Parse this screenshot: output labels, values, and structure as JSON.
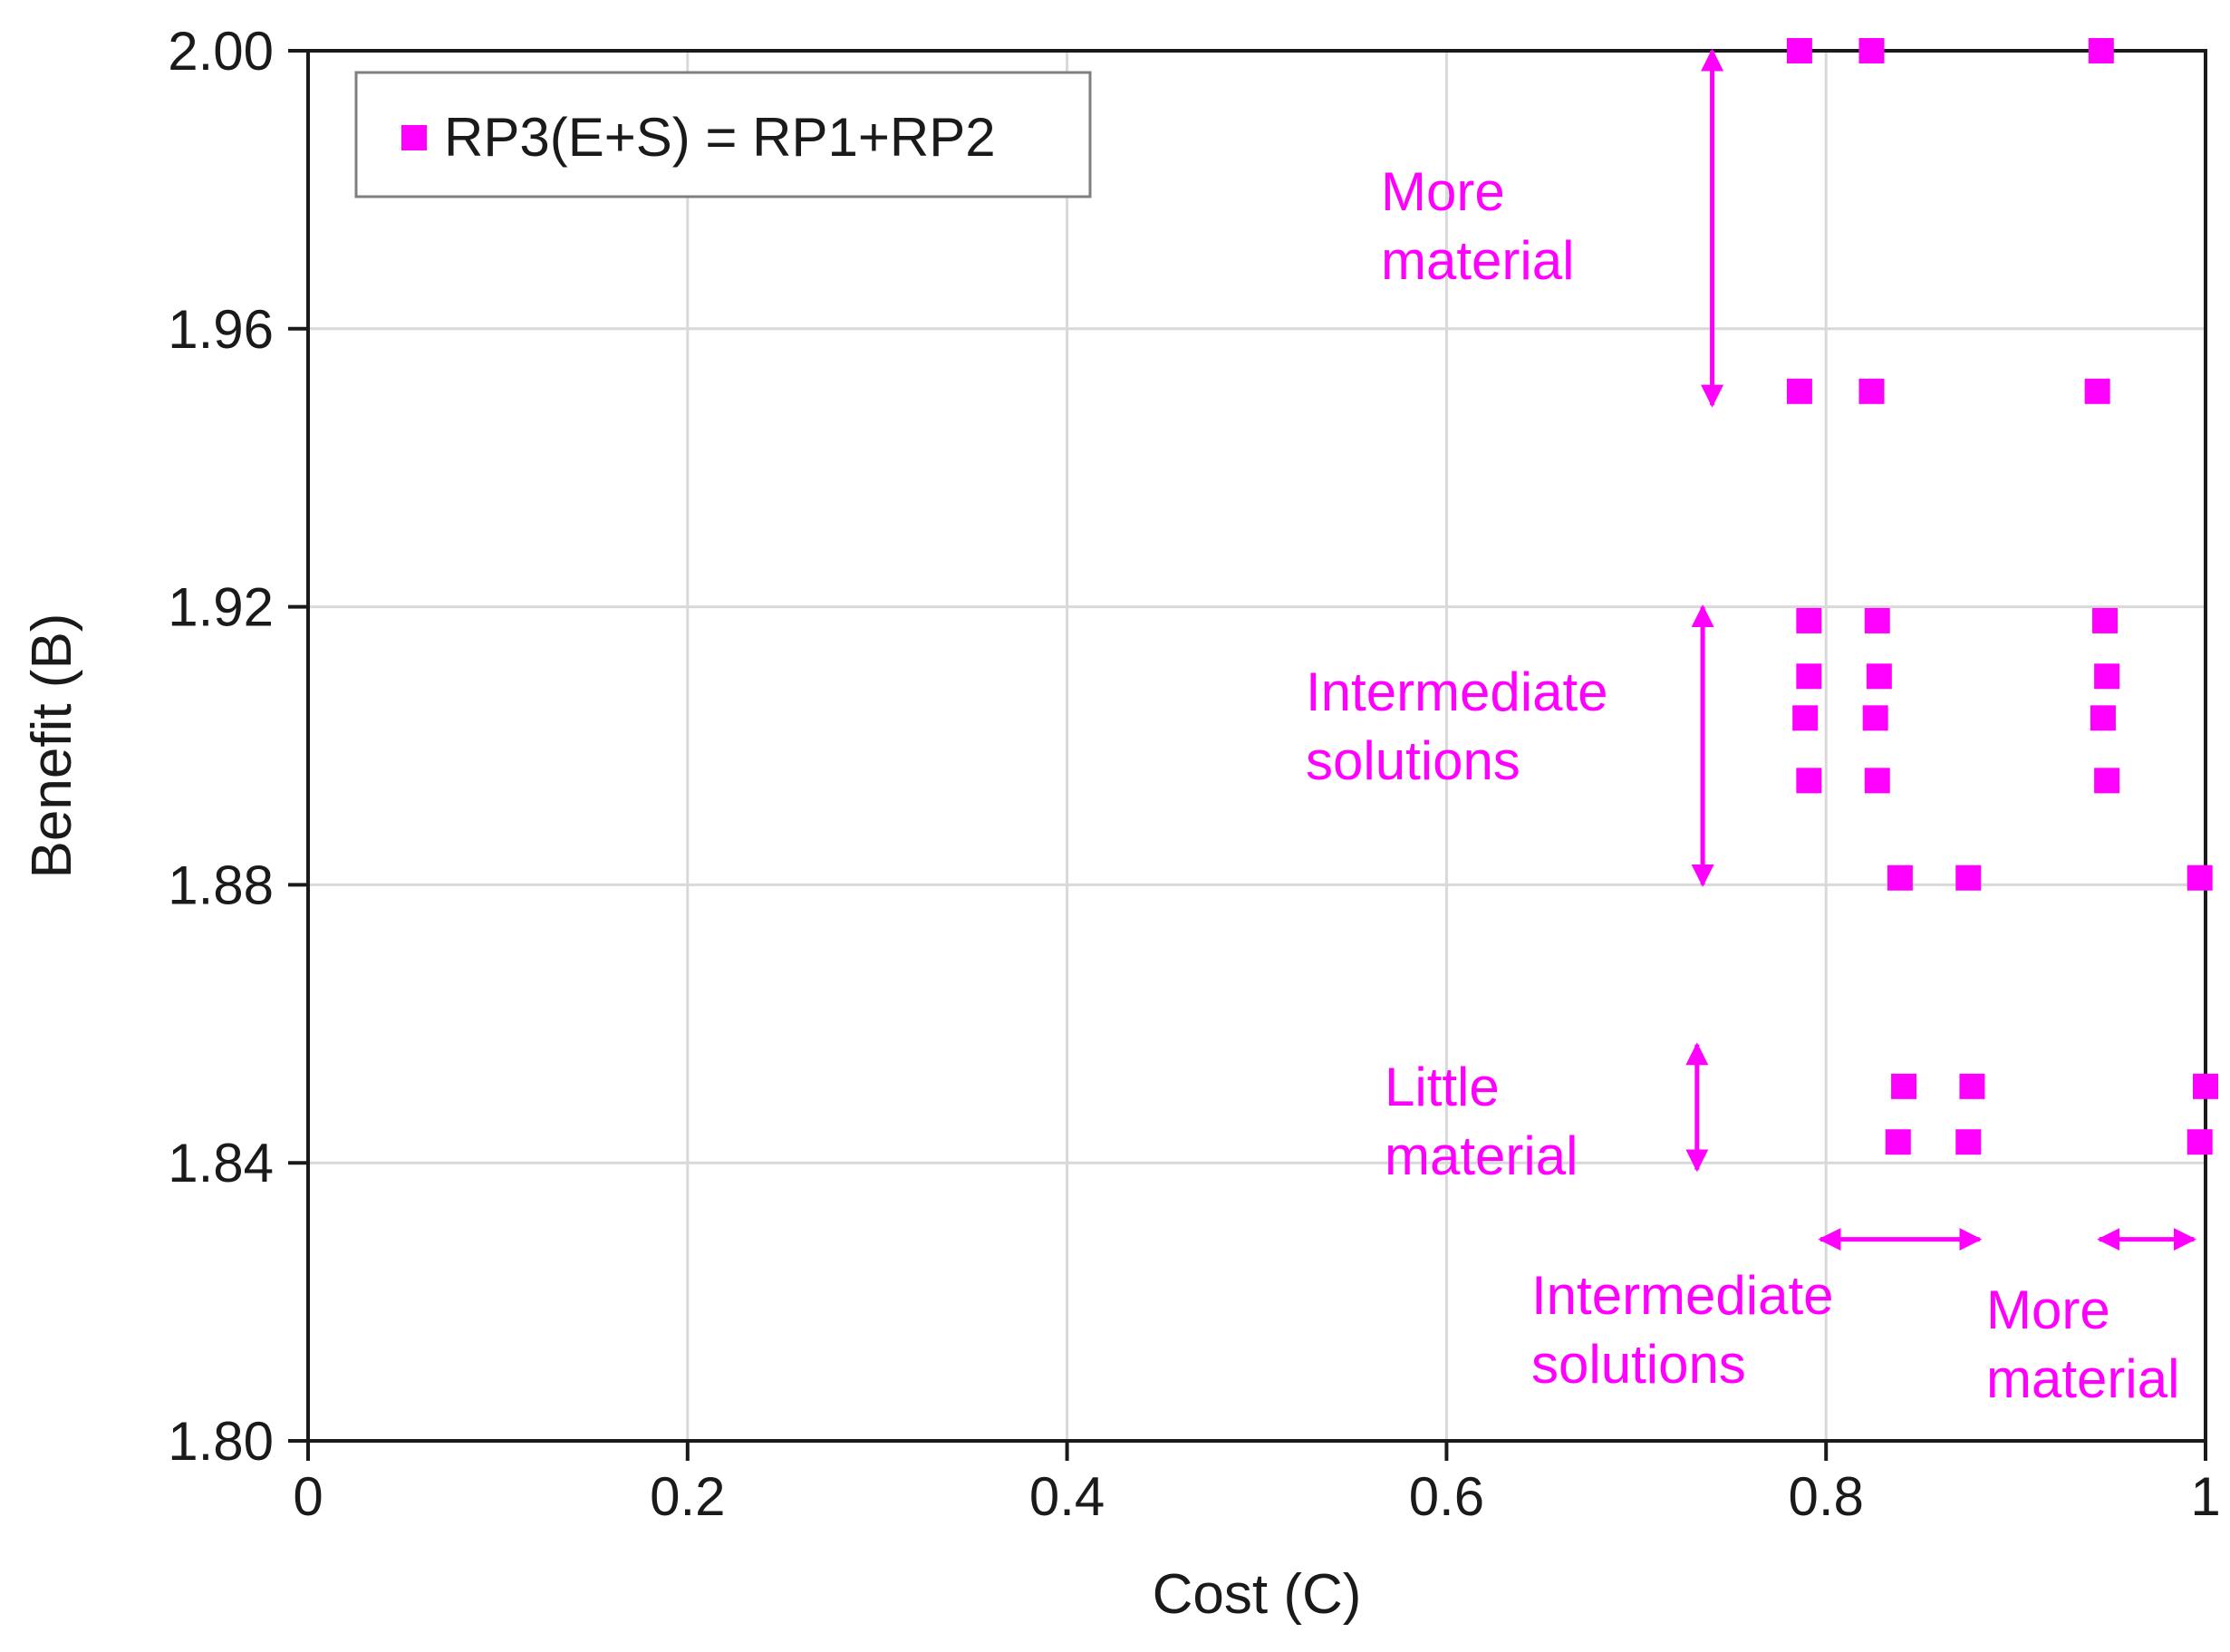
{
  "chart_data": {
    "type": "scatter",
    "title": "",
    "xlabel": "Cost (C)",
    "ylabel": "Benefit (B)",
    "xlim": [
      0,
      1
    ],
    "ylim": [
      1.8,
      2.0
    ],
    "xticks": [
      "0",
      "0.2",
      "0.4",
      "0.6",
      "0.8",
      "1"
    ],
    "yticks": [
      "1.80",
      "1.84",
      "1.88",
      "1.92",
      "1.96",
      "2.00"
    ],
    "grid": true,
    "legend_position": "top-left",
    "marker_color": "#ff00ff",
    "series": [
      {
        "name": "RP3(E+S) = RP1+RP2",
        "marker": "square",
        "points": [
          {
            "x": 0.786,
            "y": 2.0
          },
          {
            "x": 0.824,
            "y": 2.0
          },
          {
            "x": 0.945,
            "y": 2.0
          },
          {
            "x": 0.786,
            "y": 1.951
          },
          {
            "x": 0.824,
            "y": 1.951
          },
          {
            "x": 0.943,
            "y": 1.951
          },
          {
            "x": 0.791,
            "y": 1.918
          },
          {
            "x": 0.827,
            "y": 1.918
          },
          {
            "x": 0.947,
            "y": 1.918
          },
          {
            "x": 0.791,
            "y": 1.91
          },
          {
            "x": 0.828,
            "y": 1.91
          },
          {
            "x": 0.948,
            "y": 1.91
          },
          {
            "x": 0.789,
            "y": 1.904
          },
          {
            "x": 0.826,
            "y": 1.904
          },
          {
            "x": 0.946,
            "y": 1.904
          },
          {
            "x": 0.791,
            "y": 1.895
          },
          {
            "x": 0.827,
            "y": 1.895
          },
          {
            "x": 0.948,
            "y": 1.895
          },
          {
            "x": 0.839,
            "y": 1.881
          },
          {
            "x": 0.875,
            "y": 1.881
          },
          {
            "x": 0.997,
            "y": 1.881
          },
          {
            "x": 0.841,
            "y": 1.851
          },
          {
            "x": 0.877,
            "y": 1.851
          },
          {
            "x": 1.0,
            "y": 1.851
          },
          {
            "x": 0.838,
            "y": 1.843
          },
          {
            "x": 0.875,
            "y": 1.843
          },
          {
            "x": 0.997,
            "y": 1.843
          }
        ]
      }
    ],
    "annotations": [
      {
        "lines": [
          "More",
          "material"
        ],
        "arrow": "vertical",
        "from": [
          0.74,
          2.0
        ],
        "to": [
          0.74,
          1.949
        ]
      },
      {
        "lines": [
          "Intermediate",
          "solutions"
        ],
        "arrow": "vertical",
        "from": [
          0.735,
          1.92
        ],
        "to": [
          0.735,
          1.88
        ]
      },
      {
        "lines": [
          "Little",
          "material"
        ],
        "arrow": "vertical",
        "from": [
          0.732,
          1.857
        ],
        "to": [
          0.732,
          1.839
        ]
      },
      {
        "lines": [
          "Intermediate",
          "solutions"
        ],
        "arrow": "horizontal",
        "from": [
          0.797,
          1.829
        ],
        "to": [
          0.881,
          1.829
        ]
      },
      {
        "lines": [
          "More",
          "material"
        ],
        "arrow": "horizontal",
        "from": [
          0.944,
          1.829
        ],
        "to": [
          0.994,
          1.829
        ]
      }
    ]
  }
}
